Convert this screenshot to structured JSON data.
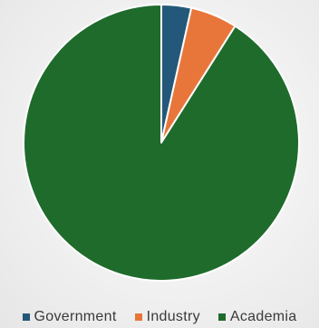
{
  "chart_data": {
    "type": "pie",
    "categories": [
      "Government",
      "Industry",
      "Academia"
    ],
    "values": [
      3.5,
      5.5,
      91.0
    ],
    "colors": [
      "#24587a",
      "#e8763a",
      "#1f6b2c"
    ],
    "start_angle_deg": 0,
    "legend_position": "bottom",
    "title": ""
  },
  "legend": {
    "items": [
      {
        "label": "Government",
        "color": "#24587a"
      },
      {
        "label": "Industry",
        "color": "#e8763a"
      },
      {
        "label": "Academia",
        "color": "#1f6b2c"
      }
    ]
  }
}
